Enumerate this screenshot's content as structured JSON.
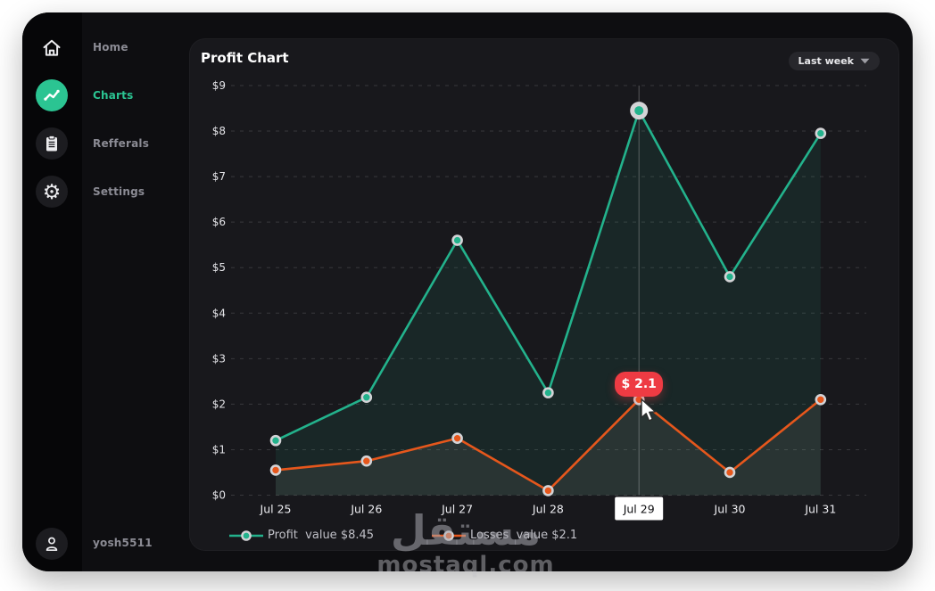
{
  "sidebar": {
    "items": [
      {
        "label": "Home",
        "icon": "home-icon",
        "active": false
      },
      {
        "label": "Charts",
        "icon": "chart-icon",
        "active": true
      },
      {
        "label": "Refferals",
        "icon": "clipboard-icon",
        "active": false
      },
      {
        "label": "Settings",
        "icon": "gear-icon",
        "active": false
      }
    ],
    "user": {
      "label": "yosh5511",
      "icon": "person-icon"
    }
  },
  "panel": {
    "title": "Profit Chart",
    "range_selector": {
      "value": "Last week",
      "icon": "chevron-down-icon"
    }
  },
  "chart_data": {
    "type": "line",
    "title": "Profit Chart",
    "x": [
      "Jul 25",
      "Jul 26",
      "Jul 27",
      "Jul 28",
      "Jul 29",
      "Jul 30",
      "Jul 31"
    ],
    "series": [
      {
        "name": "Profit",
        "color": "#23b28c",
        "values": [
          1.2,
          2.15,
          5.6,
          2.25,
          8.45,
          4.8,
          7.95
        ]
      },
      {
        "name": "Losses",
        "color": "#e6571c",
        "values": [
          0.55,
          0.75,
          1.25,
          0.1,
          2.1,
          0.5,
          2.1
        ]
      }
    ],
    "ylim": [
      0,
      9
    ],
    "ytick_prefix": "$",
    "grid": "horizontal-dashed",
    "legend_position": "bottom-left",
    "highlight": {
      "x_index": 4,
      "x_label": "Jul 29",
      "profit_value": 8.45,
      "losses_value": 2.1
    },
    "tooltip": {
      "text": "$ 2.1",
      "color": "#ee3b43"
    },
    "legend": [
      {
        "label": "Profit  value $8.45",
        "color": "#23b28c"
      },
      {
        "label": "Losses  value $2.1",
        "color": "#e6571c"
      }
    ]
  },
  "watermark": {
    "logo": "مستقل",
    "domain": "mostaql.com"
  },
  "colors": {
    "accent": "#2bc492",
    "profit": "#23b28c",
    "losses": "#e6571c",
    "tooltip": "#ee3b43",
    "panel_bg": "#18181c",
    "app_bg": "#0e0e11",
    "rail_bg": "#060608",
    "highlight_label_bg": "#ffffff"
  }
}
